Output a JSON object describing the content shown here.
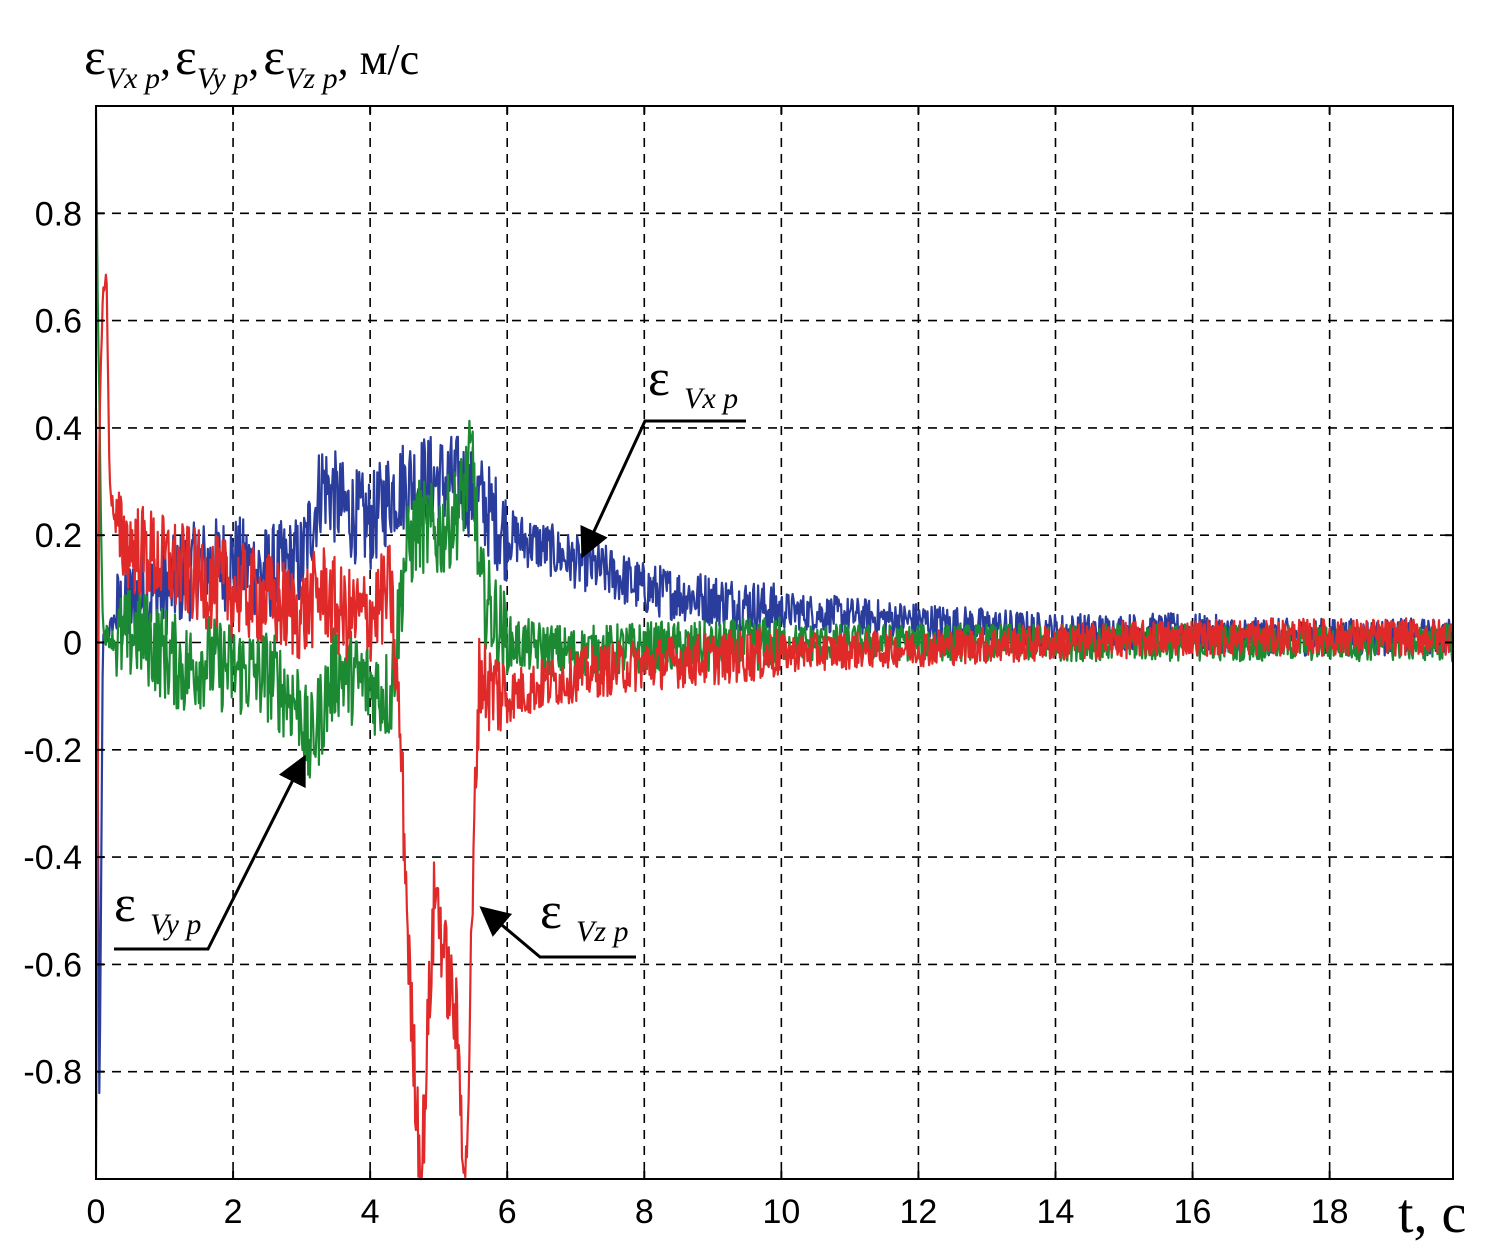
{
  "chart_data": {
    "type": "line",
    "title": "",
    "ylabel_parts": {
      "eps": "ε",
      "sub_x": "Vx p",
      "sub_y": "Vy p",
      "sub_z": "Vz p",
      "sep": ",",
      "unit": ", м/с"
    },
    "xlabel": "t, c",
    "xlim": [
      0,
      19.8
    ],
    "ylim": [
      -1.0,
      1.0
    ],
    "xticks": [
      0,
      2,
      4,
      6,
      8,
      10,
      12,
      14,
      16,
      18
    ],
    "xtick_labels": [
      "0",
      "2",
      "4",
      "6",
      "8",
      "10",
      "12",
      "14",
      "16",
      "18"
    ],
    "yticks": [
      0.8,
      0.6,
      0.4,
      0.2,
      0,
      -0.2,
      -0.4,
      -0.6,
      -0.8
    ],
    "ytick_labels": [
      "0.8",
      "0.6",
      "0.4",
      "0.2",
      "0",
      "-0.2",
      "-0.4",
      "-0.6",
      "-0.8"
    ],
    "grid": true,
    "series": [
      {
        "name": "εVx p",
        "color": "#2a3c9c",
        "x": [
          0,
          0.05,
          0.1,
          0.3,
          0.6,
          1.0,
          1.5,
          2.0,
          2.5,
          3.0,
          3.3,
          3.6,
          4.0,
          4.3,
          4.6,
          5.0,
          5.3,
          5.5,
          5.7,
          6.0,
          6.5,
          7.0,
          7.5,
          8.0,
          9.0,
          10.0,
          11.0,
          12.0,
          13.0,
          14.0,
          15.0,
          16.0,
          17.0,
          18.0,
          19.0,
          19.8
        ],
        "y": [
          0.43,
          -0.9,
          0.0,
          0.05,
          0.08,
          0.1,
          0.14,
          0.15,
          0.13,
          0.15,
          0.3,
          0.25,
          0.22,
          0.28,
          0.3,
          0.3,
          0.3,
          0.28,
          0.25,
          0.2,
          0.18,
          0.15,
          0.13,
          0.1,
          0.08,
          0.06,
          0.05,
          0.04,
          0.03,
          0.02,
          0.02,
          0.02,
          0.01,
          0.01,
          0.01,
          0.01
        ]
      },
      {
        "name": "εVy p",
        "color": "#1c8a32",
        "x": [
          0,
          0.03,
          0.1,
          0.3,
          0.6,
          1.0,
          1.3,
          1.6,
          2.0,
          2.5,
          3.0,
          3.1,
          3.5,
          4.0,
          4.3,
          4.5,
          4.7,
          5.0,
          5.3,
          5.5,
          5.6,
          6.0,
          7.0,
          8.0,
          9.0,
          10.0,
          12.0,
          14.0,
          16.0,
          18.0,
          19.8
        ],
        "y": [
          0.98,
          0.6,
          0.02,
          0.0,
          0.02,
          -0.02,
          -0.05,
          -0.03,
          -0.05,
          -0.06,
          -0.12,
          -0.2,
          -0.05,
          -0.08,
          -0.1,
          0.15,
          0.22,
          0.2,
          0.25,
          0.35,
          0.1,
          0.0,
          -0.02,
          -0.01,
          -0.01,
          0.0,
          0.0,
          0.0,
          0.0,
          0.0,
          0.0
        ]
      },
      {
        "name": "εVz p",
        "color": "#e02a2a",
        "x": [
          0,
          0.05,
          0.1,
          0.15,
          0.2,
          0.3,
          0.5,
          1.0,
          1.5,
          2.0,
          2.5,
          3.0,
          3.3,
          3.6,
          4.0,
          4.3,
          4.45,
          4.6,
          4.75,
          4.85,
          4.95,
          5.1,
          5.25,
          5.4,
          5.55,
          5.6,
          5.7,
          6.0,
          6.5,
          7.0,
          8.0,
          9.0,
          10.0,
          12.0,
          14.0,
          16.0,
          18.0,
          19.8
        ],
        "y": [
          -1.0,
          0.4,
          0.65,
          0.7,
          0.3,
          0.2,
          0.18,
          0.15,
          0.12,
          0.1,
          0.08,
          0.05,
          0.1,
          0.05,
          0.05,
          0.1,
          -0.2,
          -0.7,
          -1.0,
          -0.7,
          -0.45,
          -0.6,
          -0.7,
          -1.0,
          -0.2,
          -0.05,
          -0.08,
          -0.1,
          -0.08,
          -0.06,
          -0.04,
          -0.03,
          -0.02,
          -0.01,
          0.0,
          0.01,
          0.01,
          0.01
        ]
      }
    ],
    "annotations": [
      {
        "eps": "ε",
        "sub": "Vx p"
      },
      {
        "eps": "ε",
        "sub": "Vy p"
      },
      {
        "eps": "ε",
        "sub": "Vz p"
      }
    ]
  }
}
